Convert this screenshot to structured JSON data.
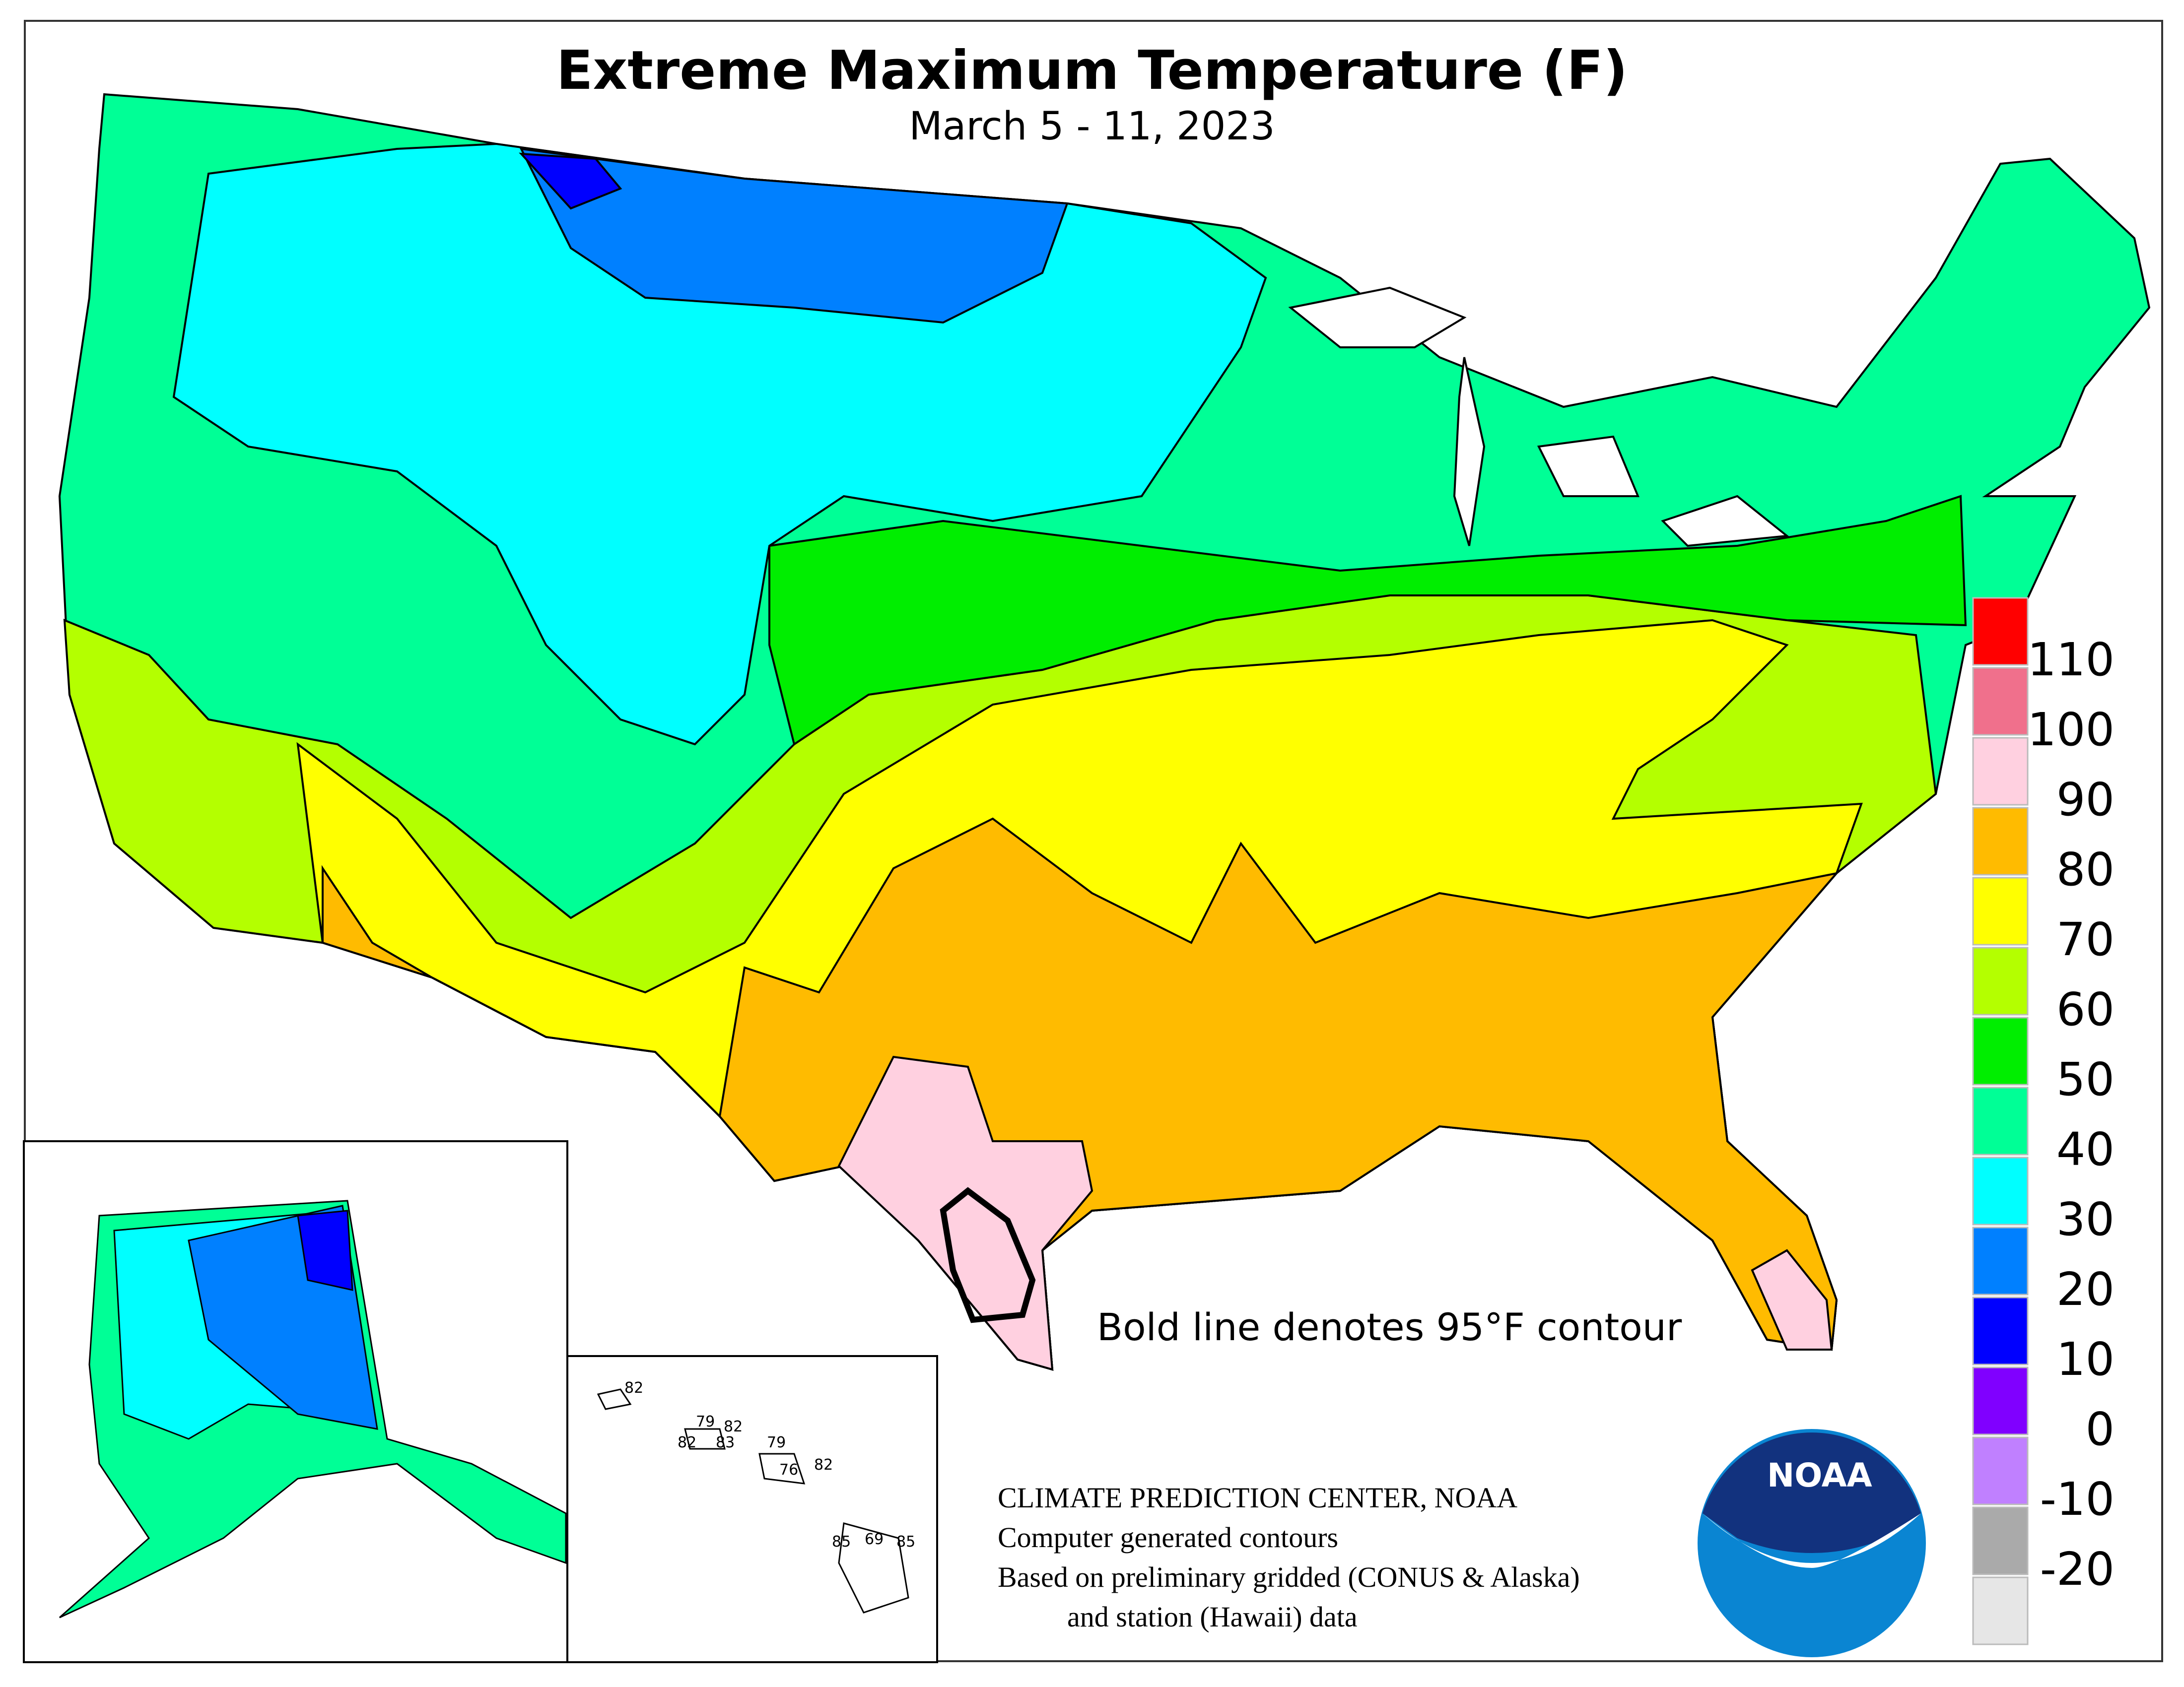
{
  "title": "Extreme Maximum Temperature (F)",
  "subtitle": "March 5 - 11, 2023",
  "note": "Bold line denotes 95°F contour",
  "credits": [
    "CLIMATE PREDICTION CENTER, NOAA",
    "Computer generated contours",
    "Based on preliminary gridded (CONUS & Alaska)",
    "and station (Hawaii) data"
  ],
  "logo": {
    "text": "NOAA",
    "icon": "noaa-logo"
  },
  "legend": {
    "bins": [
      {
        "color": "#ff0000"
      },
      {
        "color": "#f0708c"
      },
      {
        "color": "#ffd0e0"
      },
      {
        "color": "#ffbb00"
      },
      {
        "color": "#ffff00"
      },
      {
        "color": "#b4ff00"
      },
      {
        "color": "#00ee00"
      },
      {
        "color": "#00ff96"
      },
      {
        "color": "#00ffff"
      },
      {
        "color": "#0080ff"
      },
      {
        "color": "#0000ff"
      },
      {
        "color": "#8000ff"
      },
      {
        "color": "#c080ff"
      },
      {
        "color": "#aaaaaa"
      },
      {
        "color": "#e6e6e6"
      }
    ],
    "labels": [
      "110",
      "100",
      "90",
      "80",
      "70",
      "60",
      "50",
      "40",
      "30",
      "20",
      "10",
      "0",
      "-10",
      "-20"
    ]
  },
  "hawaii_stations": [
    {
      "value": "82"
    },
    {
      "value": "79"
    },
    {
      "value": "82"
    },
    {
      "value": "82"
    },
    {
      "value": "83"
    },
    {
      "value": "79"
    },
    {
      "value": "76"
    },
    {
      "value": "82"
    },
    {
      "value": "85"
    },
    {
      "value": "69"
    },
    {
      "value": "85"
    }
  ]
}
